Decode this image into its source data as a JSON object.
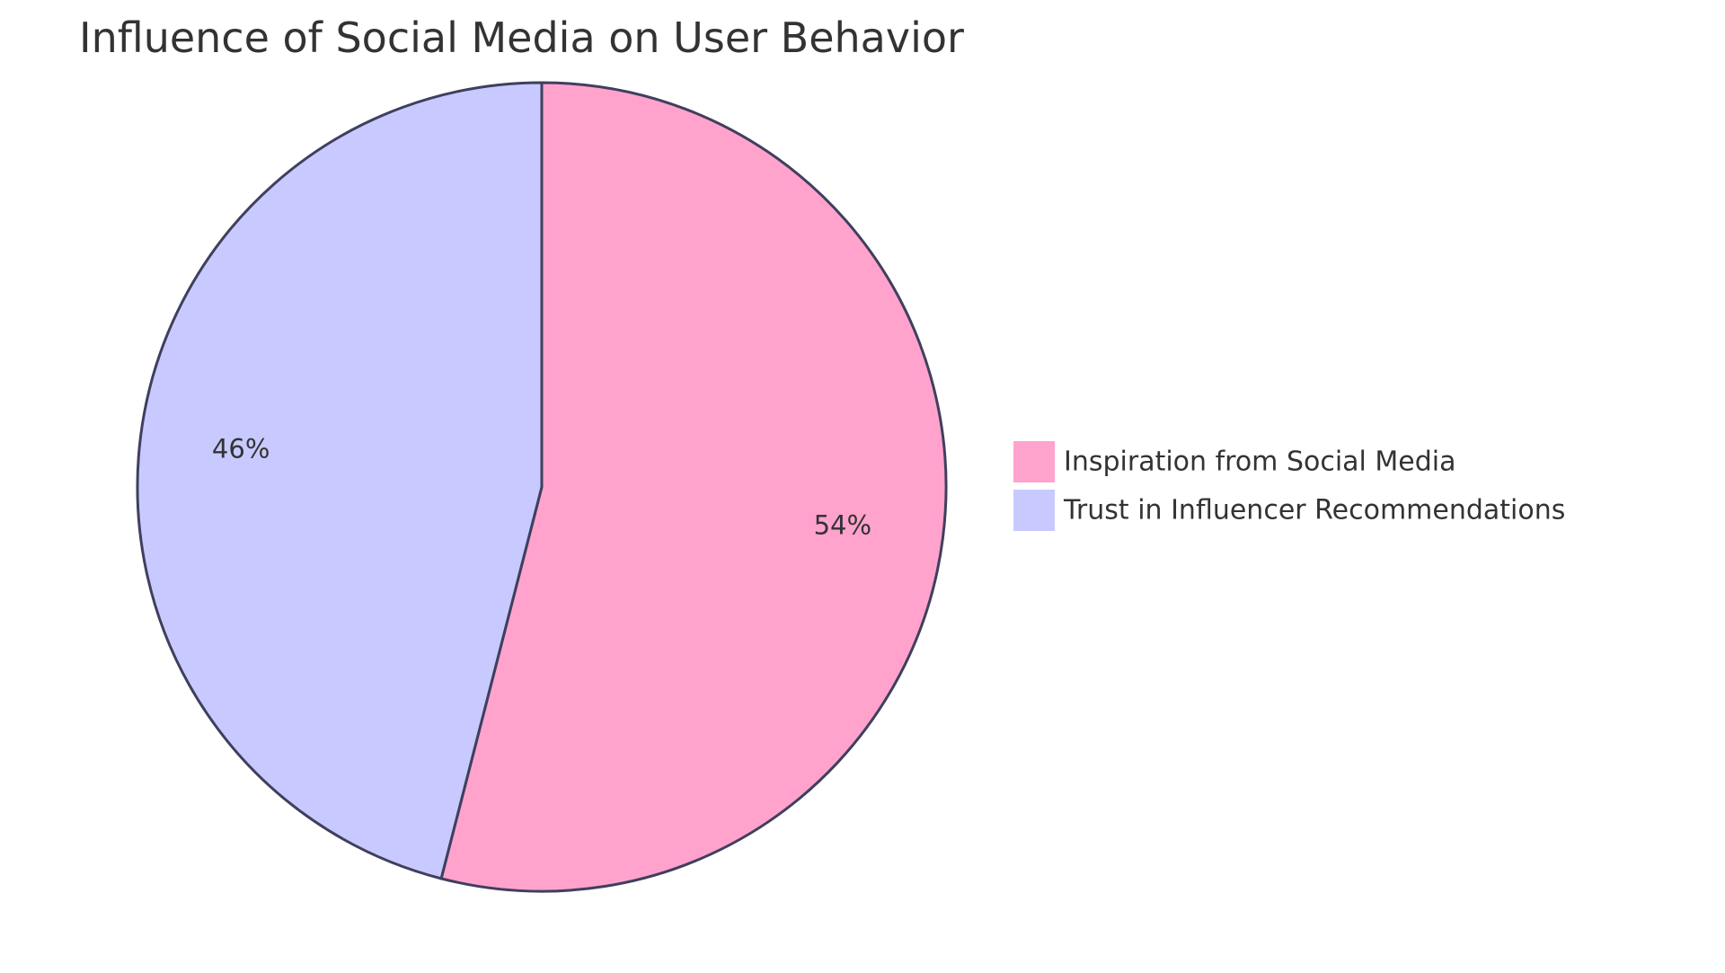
{
  "chart_data": {
    "type": "pie",
    "title": "Influence of Social Media on User Behavior",
    "start_angle": "12 o'clock",
    "direction": "clockwise",
    "legend_position": "right",
    "outline_color": "#3f3f5e",
    "slices": [
      {
        "label": "Inspiration from Social Media",
        "value": 54,
        "value_label": "54%",
        "color": "#ffa3cd"
      },
      {
        "label": "Trust in Influencer Recommendations",
        "value": 46,
        "value_label": "46%",
        "color": "#c8caff"
      }
    ]
  }
}
